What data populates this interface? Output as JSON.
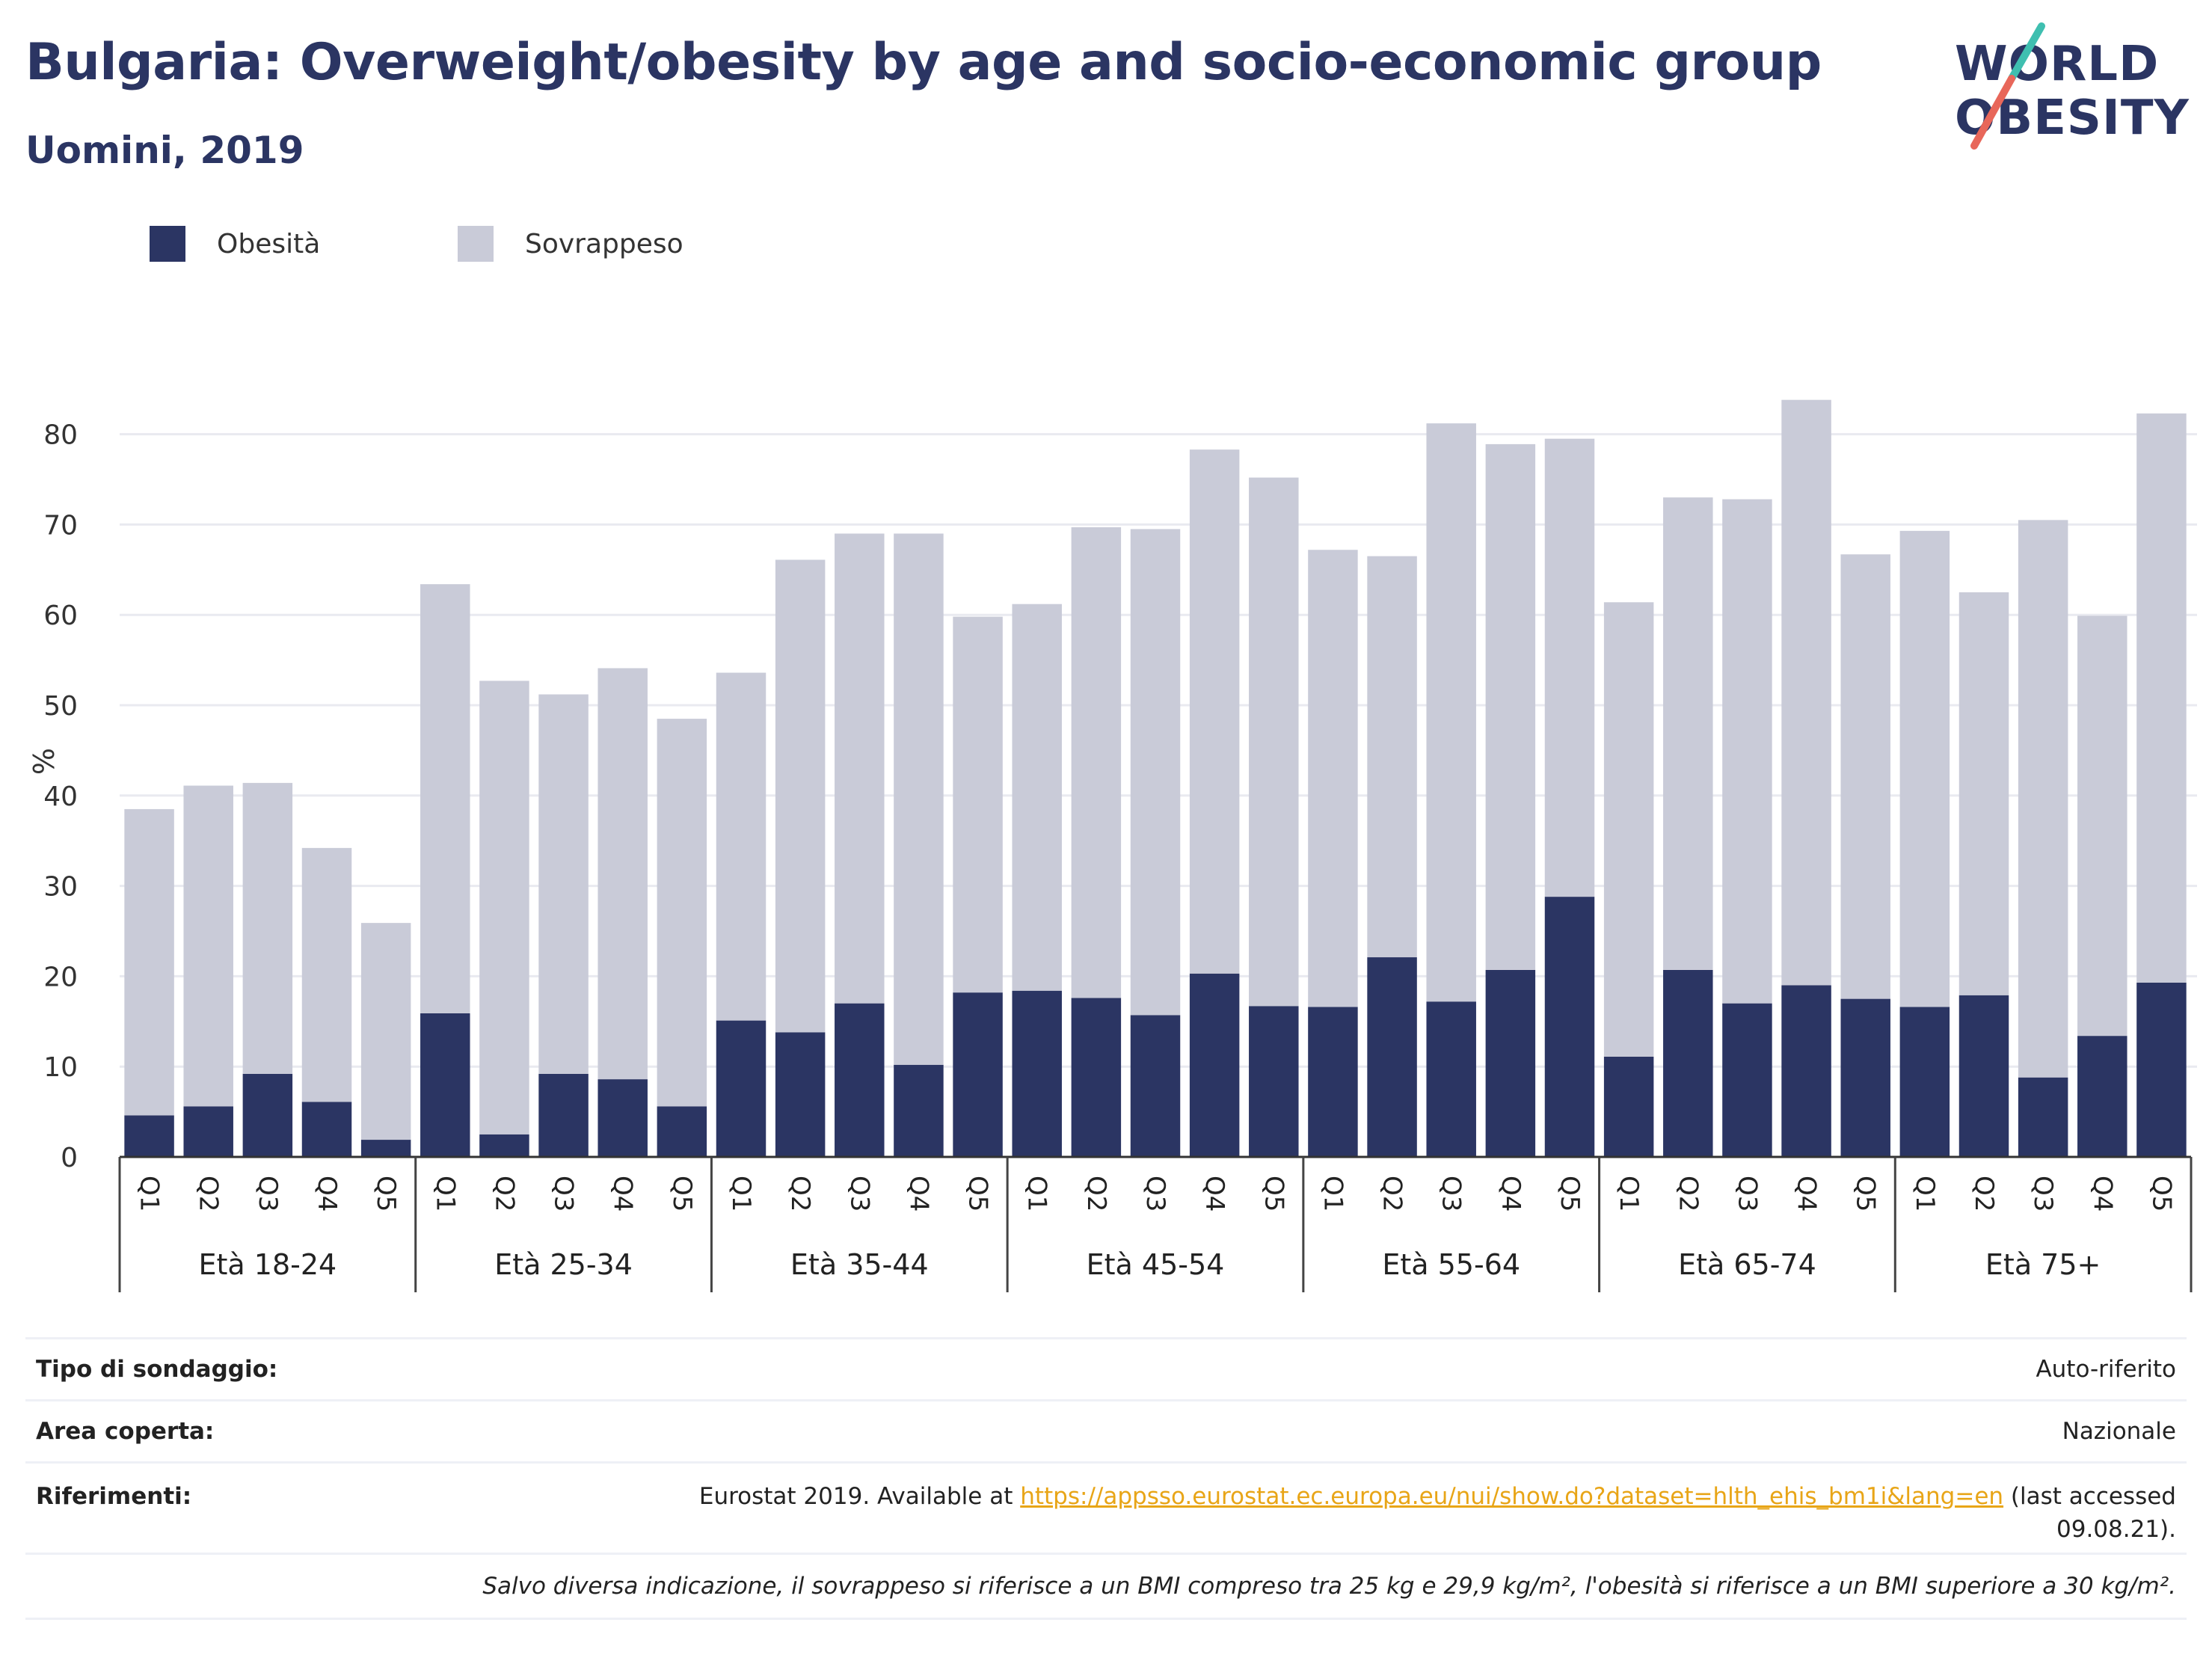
{
  "header": {
    "title": "Bulgaria: Overweight/obesity by age and socio-economic group",
    "subtitle": "Uomini, 2019"
  },
  "logo": {
    "line1": "WORLD",
    "line2": "OBESITY",
    "colors": {
      "text": "#2b3563",
      "stroke_teal": "#3fbfb0",
      "stroke_coral": "#e8675a"
    }
  },
  "legend": {
    "items": [
      {
        "label": "Obesità",
        "color": "#2b3563"
      },
      {
        "label": "Sovrappeso",
        "color": "#c9cbd8"
      }
    ]
  },
  "chart_data": {
    "type": "bar",
    "stacked": true,
    "ylabel": "%",
    "ylim": [
      0,
      90
    ],
    "yticks": [
      0,
      10,
      20,
      30,
      40,
      50,
      60,
      70,
      80
    ],
    "grid": true,
    "legend_position": "top-left",
    "groups": [
      {
        "label": "Età 18-24",
        "categories": [
          "Q1",
          "Q2",
          "Q3",
          "Q4",
          "Q5"
        ]
      },
      {
        "label": "Età 25-34",
        "categories": [
          "Q1",
          "Q2",
          "Q3",
          "Q4",
          "Q5"
        ]
      },
      {
        "label": "Età 35-44",
        "categories": [
          "Q1",
          "Q2",
          "Q3",
          "Q4",
          "Q5"
        ]
      },
      {
        "label": "Età 45-54",
        "categories": [
          "Q1",
          "Q2",
          "Q3",
          "Q4",
          "Q5"
        ]
      },
      {
        "label": "Età 55-64",
        "categories": [
          "Q1",
          "Q2",
          "Q3",
          "Q4",
          "Q5"
        ]
      },
      {
        "label": "Età 65-74",
        "categories": [
          "Q1",
          "Q2",
          "Q3",
          "Q4",
          "Q5"
        ]
      },
      {
        "label": "Età 75+",
        "categories": [
          "Q1",
          "Q2",
          "Q3",
          "Q4",
          "Q5"
        ]
      }
    ],
    "series": [
      {
        "name": "Obesità",
        "color": "#2b3563",
        "values": [
          4.6,
          5.6,
          9.2,
          6.1,
          1.9,
          15.9,
          2.5,
          9.2,
          8.6,
          5.6,
          15.1,
          13.8,
          17.0,
          10.2,
          18.2,
          18.4,
          17.6,
          15.7,
          20.3,
          16.7,
          16.6,
          22.1,
          17.2,
          20.7,
          28.8,
          11.1,
          20.7,
          17.0,
          19.0,
          17.5,
          16.6,
          17.9,
          8.8,
          13.4,
          19.3
        ]
      },
      {
        "name": "Sovrappeso",
        "color": "#c9cbd8",
        "values": [
          33.9,
          35.5,
          32.2,
          28.1,
          24.0,
          47.5,
          50.2,
          42.0,
          45.5,
          42.9,
          38.5,
          52.3,
          52.0,
          58.8,
          41.6,
          42.8,
          52.1,
          53.8,
          58.0,
          58.5,
          50.6,
          44.4,
          64.0,
          58.2,
          50.7,
          50.3,
          52.3,
          55.8,
          64.8,
          49.2,
          52.7,
          44.6,
          61.7,
          46.5,
          63.0
        ]
      }
    ]
  },
  "info": {
    "rows": [
      {
        "key": "Tipo di sondaggio:",
        "value": "Auto-riferito"
      },
      {
        "key": "Area coperta:",
        "value": "Nazionale"
      }
    ],
    "references": {
      "key": "Riferimenti:",
      "prefix": "Eurostat 2019. Available at ",
      "url": "https://appsso.eurostat.ec.europa.eu/nui/show.do?dataset=hlth_ehis_bm1i&lang=en",
      "suffix_line1": " (last accessed",
      "suffix_line2": "09.08.21)."
    },
    "note": "Salvo diversa indicazione, il sovrappeso si riferisce a un BMI compreso tra 25 kg e 29,9 kg/m², l'obesità si riferisce a un BMI superiore a 30 kg/m²."
  }
}
